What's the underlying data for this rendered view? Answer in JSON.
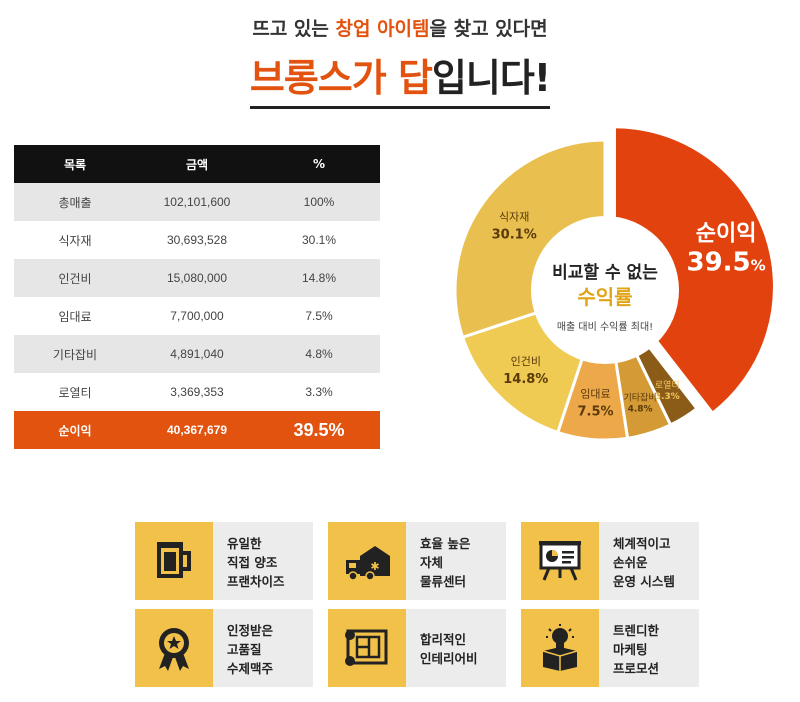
{
  "headline": {
    "sub_prefix": "뜨고 있는 ",
    "sub_highlight": "창업 아이템",
    "sub_suffix": "을 찾고 있다면",
    "main_highlight": "브롱스가 답",
    "main_suffix": "입니다!"
  },
  "table": {
    "headers": [
      "목록",
      "금액",
      "%"
    ],
    "rows": [
      {
        "item": "총매출",
        "amount": "102,101,600",
        "pct": "100%"
      },
      {
        "item": "식자재",
        "amount": "30,693,528",
        "pct": "30.1%"
      },
      {
        "item": "인건비",
        "amount": "15,080,000",
        "pct": "14.8%"
      },
      {
        "item": "임대료",
        "amount": "7,700,000",
        "pct": "7.5%"
      },
      {
        "item": "기타잡비",
        "amount": "4,891,040",
        "pct": "4.8%"
      },
      {
        "item": "로열티",
        "amount": "3,369,353",
        "pct": "3.3%"
      },
      {
        "item": "순이익",
        "amount": "40,367,679",
        "pct": "39.5%"
      }
    ]
  },
  "chart_data": {
    "type": "pie",
    "style": "donut",
    "title": "",
    "slices": [
      {
        "label": "순이익",
        "value": 39.5,
        "value_label": "39.5",
        "value_suffix": "%",
        "color": "#e2420e",
        "text_color": "#ffffff"
      },
      {
        "label": "로열티",
        "value": 3.3,
        "value_label": "3.3%",
        "color": "#8a5c17",
        "text_color": "#f5c65a"
      },
      {
        "label": "기타잡비",
        "value": 4.8,
        "value_label": "4.8%",
        "color": "#d39a35",
        "text_color": "#5a3a0a"
      },
      {
        "label": "임대료",
        "value": 7.5,
        "value_label": "7.5%",
        "color": "#eda84a",
        "text_color": "#5a3a0a"
      },
      {
        "label": "인건비",
        "value": 14.8,
        "value_label": "14.8%",
        "color": "#efcb54",
        "text_color": "#5a3a0a"
      },
      {
        "label": "식자재",
        "value": 30.1,
        "value_label": "30.1%",
        "color": "#e9bf4f",
        "text_color": "#5a3a0a"
      }
    ],
    "center": {
      "line1": "비교할 수 없는",
      "line2": "수익률",
      "line3": "매출 대비 수익률 최대!",
      "highlight_color": "#e0a415"
    }
  },
  "features": [
    {
      "icon": "beer-mug-icon",
      "lines": [
        "유일한",
        "직접 양조",
        "프랜차이즈"
      ]
    },
    {
      "icon": "delivery-truck-icon",
      "lines": [
        "효율 높은",
        "자체",
        "물류센터"
      ]
    },
    {
      "icon": "presentation-board-icon",
      "lines": [
        "체계적이고",
        "손쉬운",
        "운영 시스템"
      ]
    },
    {
      "icon": "award-medal-icon",
      "lines": [
        "인정받은",
        "고품질",
        "수제맥주"
      ]
    },
    {
      "icon": "blueprint-icon",
      "lines": [
        "합리적인",
        "인테리어비"
      ]
    },
    {
      "icon": "lightbulb-box-icon",
      "lines": [
        "트렌디한",
        "마케팅",
        "프로모션"
      ]
    }
  ]
}
